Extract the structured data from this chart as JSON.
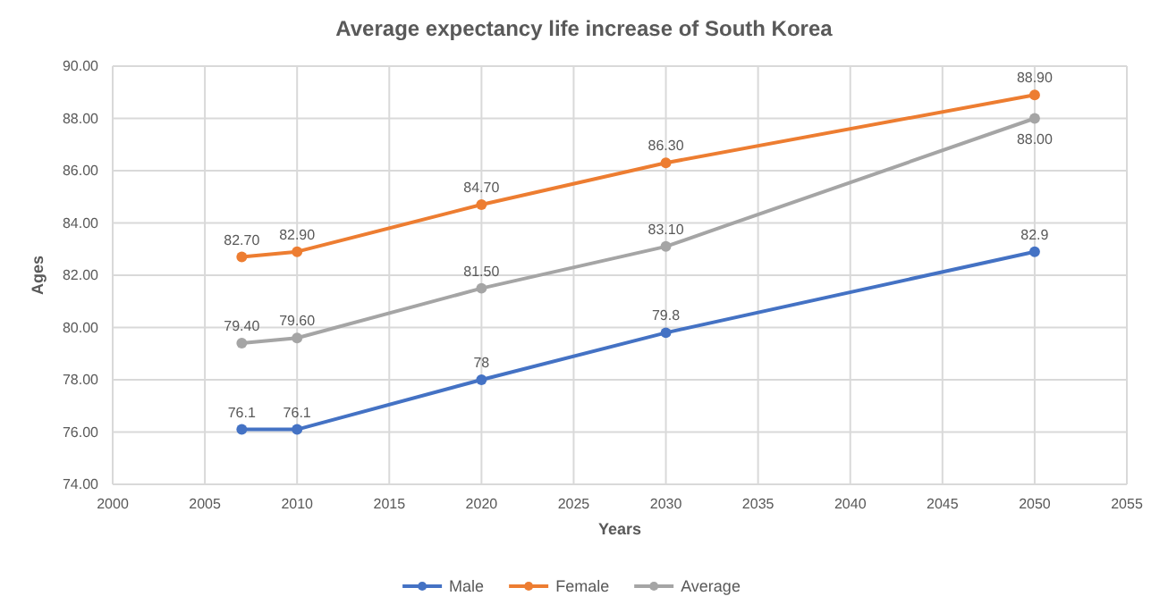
{
  "chart_data": {
    "type": "line",
    "title": "Average expectancy life increase of South Korea",
    "xlabel": "Years",
    "ylabel": "Ages",
    "x": [
      2007,
      2010,
      2020,
      2030,
      2050
    ],
    "series": [
      {
        "name": "Male",
        "color": "#4472c4",
        "values": [
          76.1,
          76.1,
          78,
          79.8,
          82.9
        ],
        "value_labels": [
          "76.1",
          "76.1",
          "78",
          "79.8",
          "82.9"
        ]
      },
      {
        "name": "Female",
        "color": "#ed7d31",
        "values": [
          82.7,
          82.9,
          84.7,
          86.3,
          88.9
        ],
        "value_labels": [
          "82.70",
          "82.90",
          "84.70",
          "86.30",
          "88.90"
        ]
      },
      {
        "name": "Average",
        "color": "#a5a5a5",
        "values": [
          79.4,
          79.6,
          81.5,
          83.1,
          88.0
        ],
        "value_labels": [
          "79.40",
          "79.60",
          "81.50",
          "83.10",
          "88.00"
        ]
      }
    ],
    "xlim": [
      2000,
      2055
    ],
    "xticks": [
      2000,
      2005,
      2010,
      2015,
      2020,
      2025,
      2030,
      2035,
      2040,
      2045,
      2050,
      2055
    ],
    "ylim": [
      74,
      90
    ],
    "yticks": [
      {
        "value": 74,
        "label": "74.00"
      },
      {
        "value": 76,
        "label": "76.00"
      },
      {
        "value": 78,
        "label": "78.00"
      },
      {
        "value": 80,
        "label": "80.00"
      },
      {
        "value": 82,
        "label": "82.00"
      },
      {
        "value": 84,
        "label": "84.00"
      },
      {
        "value": 86,
        "label": "86.00"
      },
      {
        "value": 88,
        "label": "88.00"
      },
      {
        "value": 90,
        "label": "90.00"
      }
    ],
    "grid": true,
    "legend": "bottom",
    "marker": "circle",
    "line_style": "solid"
  }
}
